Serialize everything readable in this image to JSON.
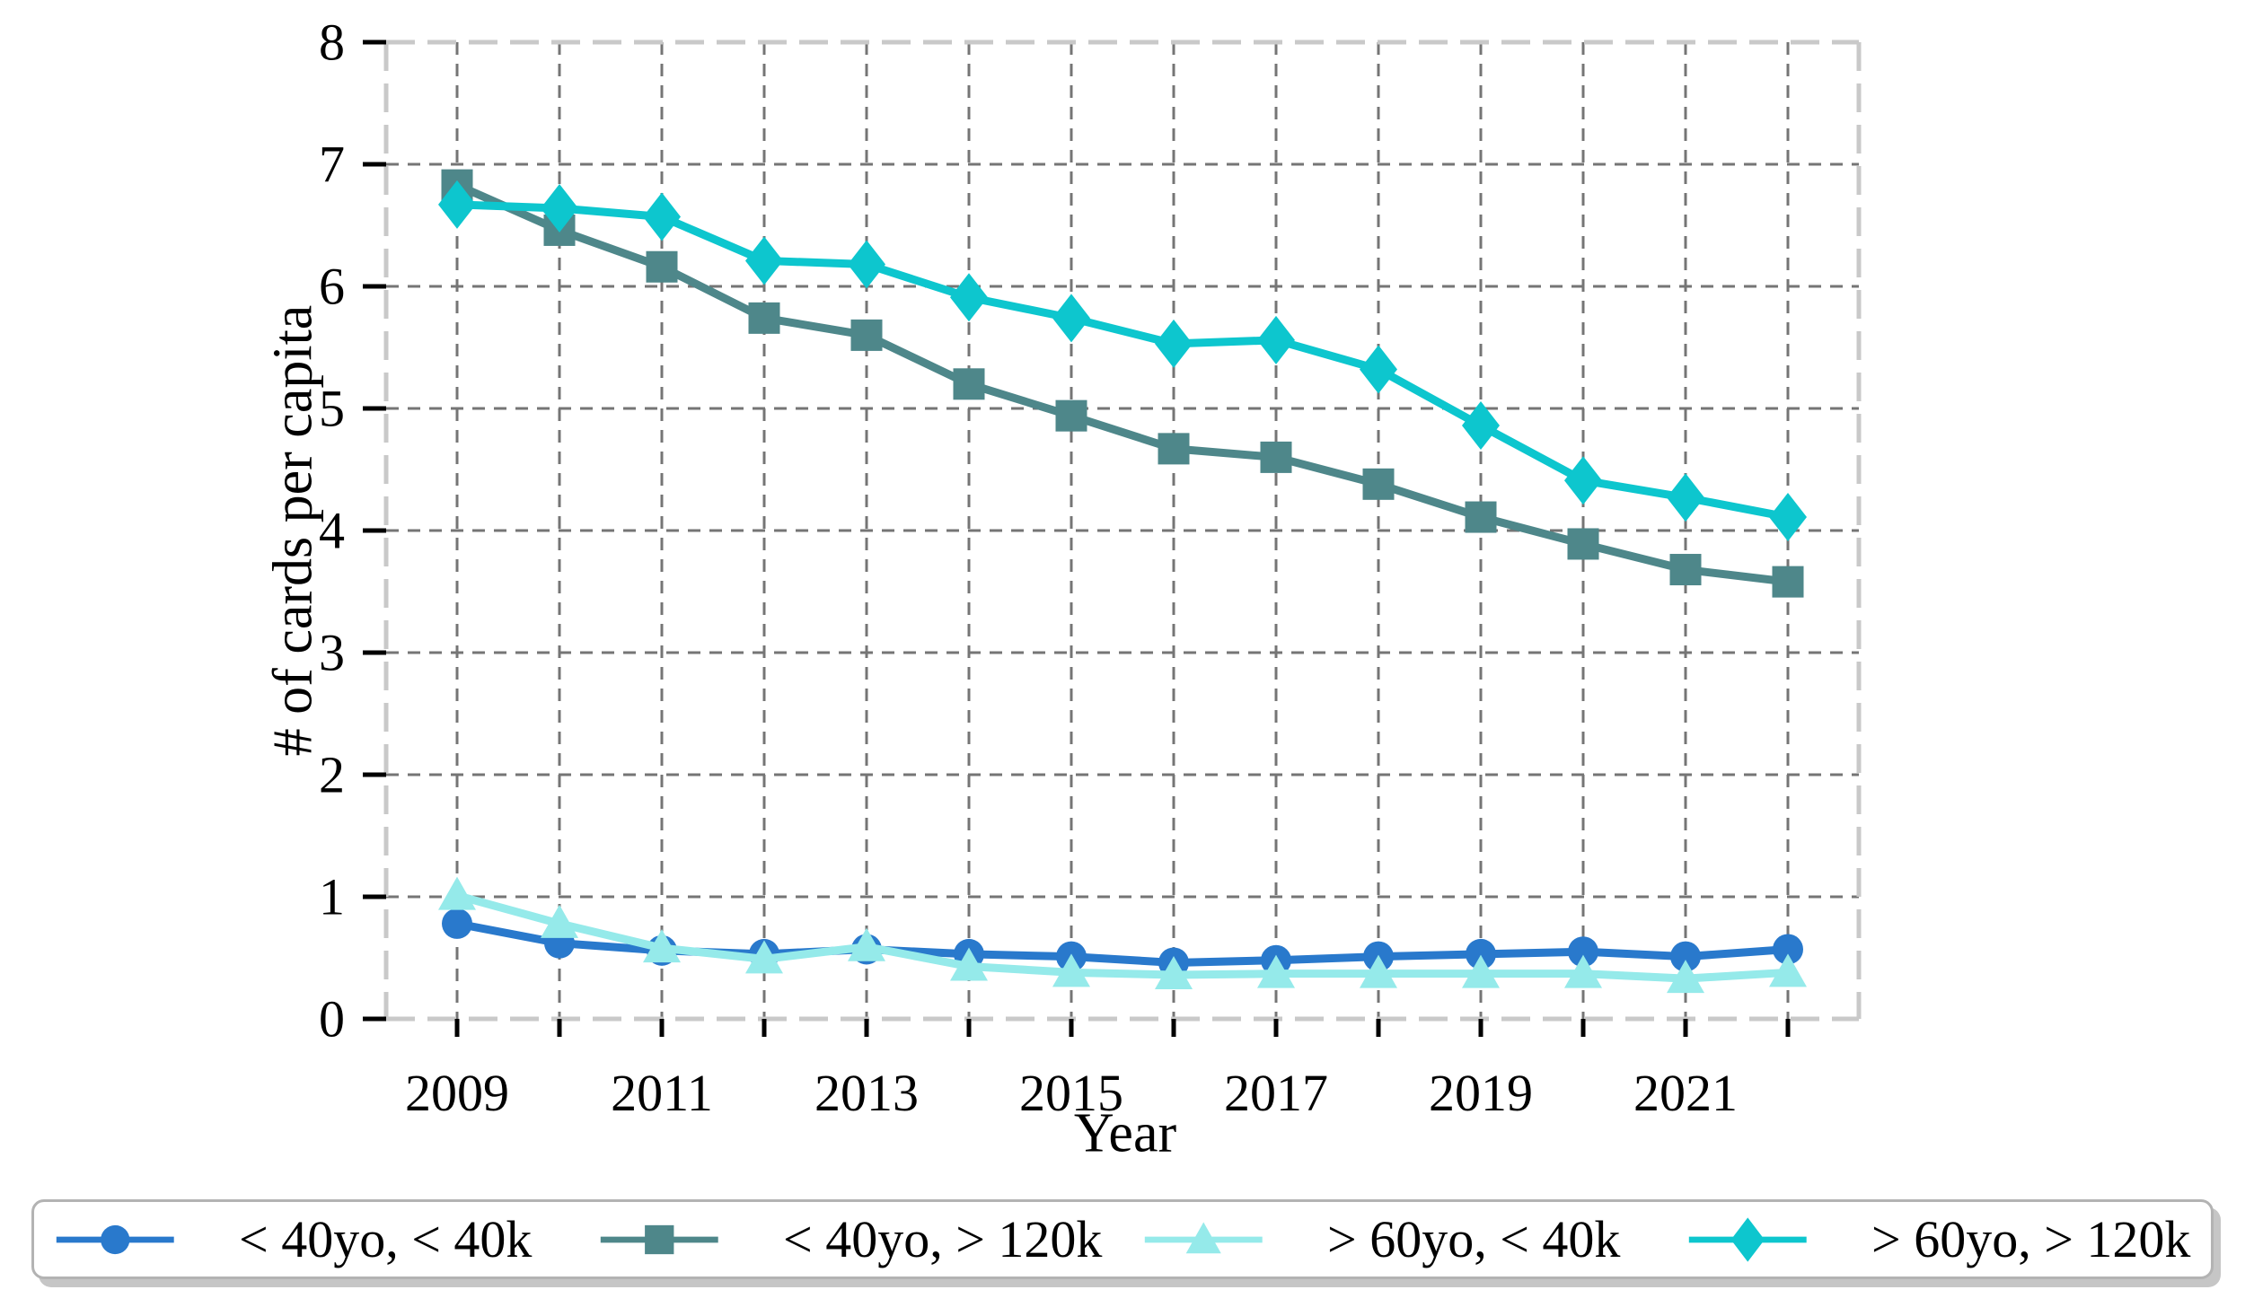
{
  "figure": {
    "background": "#ffffff"
  },
  "chart_data": {
    "type": "line",
    "title": "",
    "xlabel": "Year",
    "ylabel": "# of cards per capita",
    "x": [
      2009,
      2010,
      2011,
      2012,
      2013,
      2014,
      2015,
      2016,
      2017,
      2018,
      2019,
      2020,
      2021,
      2022
    ],
    "x_tick_labels": [
      "2009",
      "2011",
      "2013",
      "2015",
      "2017",
      "2019",
      "2021"
    ],
    "x_labeled_years": [
      2009,
      2011,
      2013,
      2015,
      2017,
      2019,
      2021
    ],
    "y_ticks": [
      0,
      1,
      2,
      3,
      4,
      5,
      6,
      7,
      8
    ],
    "y_tick_labels": [
      "0",
      "1",
      "2",
      "3",
      "4",
      "5",
      "6",
      "7",
      "8"
    ],
    "xlim": [
      2008.3,
      2022.7
    ],
    "ylim": [
      0,
      8
    ],
    "grid": "dashed",
    "grid_color": "#757575",
    "frame_color": "#c9c9c9",
    "tick_color": "#000000",
    "legend_position": "bottom",
    "series": [
      {
        "name": "< 40yo, < 40k",
        "marker": "circle",
        "color": "#2979CC",
        "values": [
          0.78,
          0.62,
          0.56,
          0.53,
          0.57,
          0.53,
          0.51,
          0.46,
          0.48,
          0.51,
          0.53,
          0.55,
          0.51,
          0.57
        ]
      },
      {
        "name": "< 40yo, > 120k",
        "marker": "square",
        "color": "#4E878A",
        "values": [
          6.83,
          6.46,
          6.16,
          5.74,
          5.6,
          5.2,
          4.94,
          4.67,
          4.6,
          4.38,
          4.11,
          3.89,
          3.68,
          3.58
        ]
      },
      {
        "name": "> 60yo, < 40k",
        "marker": "triangle",
        "color": "#95EAEA",
        "values": [
          1.01,
          0.78,
          0.58,
          0.49,
          0.59,
          0.43,
          0.38,
          0.36,
          0.37,
          0.37,
          0.37,
          0.37,
          0.33,
          0.38
        ]
      },
      {
        "name": "> 60yo, > 120k",
        "marker": "diamond",
        "color": "#0DC6CE",
        "values": [
          6.67,
          6.64,
          6.57,
          6.21,
          6.18,
          5.91,
          5.74,
          5.53,
          5.56,
          5.32,
          4.86,
          4.41,
          4.27,
          4.11
        ]
      }
    ]
  }
}
